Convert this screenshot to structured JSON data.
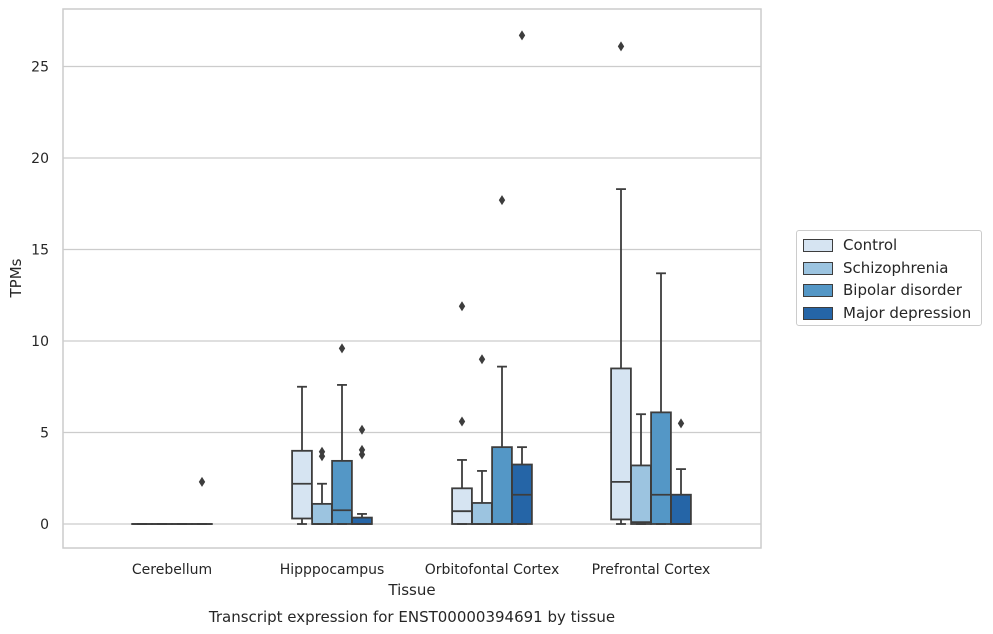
{
  "chart_data": {
    "type": "box",
    "title": "Transcript expression for ENST00000394691 by tissue",
    "xlabel": "Tissue",
    "ylabel": "TPMs",
    "ylim": [
      -1.2,
      28.0
    ],
    "yticks": [
      0,
      5,
      10,
      15,
      20,
      25
    ],
    "grid": true,
    "legend_position": "right",
    "categories": [
      "Cerebellum",
      "Hipppocampus",
      "Orbitofontal Cortex",
      "Prefrontal Cortex"
    ],
    "series": [
      {
        "name": "Control",
        "color": "#d6e4f2",
        "boxes": [
          {
            "q1": 0.0,
            "median": 0.0,
            "q3": 0.0,
            "whisker_low": 0.0,
            "whisker_high": 0.0,
            "outliers": []
          },
          {
            "q1": 0.3,
            "median": 2.2,
            "q3": 4.0,
            "whisker_low": 0.0,
            "whisker_high": 7.5,
            "outliers": []
          },
          {
            "q1": 0.0,
            "median": 0.7,
            "q3": 1.95,
            "whisker_low": 0.0,
            "whisker_high": 3.5,
            "outliers": [
              5.6,
              11.9
            ]
          },
          {
            "q1": 0.25,
            "median": 2.3,
            "q3": 8.5,
            "whisker_low": 0.0,
            "whisker_high": 18.3,
            "outliers": [
              26.1
            ]
          }
        ]
      },
      {
        "name": "Schizophrenia",
        "color": "#9cc4e0",
        "boxes": [
          {
            "q1": 0.0,
            "median": 0.0,
            "q3": 0.0,
            "whisker_low": 0.0,
            "whisker_high": 0.0,
            "outliers": []
          },
          {
            "q1": 0.0,
            "median": 0.0,
            "q3": 1.1,
            "whisker_low": 0.0,
            "whisker_high": 2.2,
            "outliers": [
              3.7,
              3.95
            ]
          },
          {
            "q1": 0.0,
            "median": 0.0,
            "q3": 1.15,
            "whisker_low": 0.0,
            "whisker_high": 2.9,
            "outliers": [
              9.0
            ]
          },
          {
            "q1": 0.0,
            "median": 0.1,
            "q3": 3.2,
            "whisker_low": 0.0,
            "whisker_high": 6.0,
            "outliers": []
          }
        ]
      },
      {
        "name": "Bipolar disorder",
        "color": "#5497c6",
        "boxes": [
          {
            "q1": 0.0,
            "median": 0.0,
            "q3": 0.0,
            "whisker_low": 0.0,
            "whisker_high": 0.0,
            "outliers": []
          },
          {
            "q1": 0.0,
            "median": 0.75,
            "q3": 3.45,
            "whisker_low": 0.0,
            "whisker_high": 7.6,
            "outliers": [
              9.6
            ]
          },
          {
            "q1": 0.0,
            "median": 0.0,
            "q3": 4.2,
            "whisker_low": 0.0,
            "whisker_high": 8.6,
            "outliers": [
              17.7
            ]
          },
          {
            "q1": 0.0,
            "median": 1.6,
            "q3": 6.1,
            "whisker_low": 0.0,
            "whisker_high": 13.7,
            "outliers": []
          }
        ]
      },
      {
        "name": "Major depression",
        "color": "#2565a7",
        "boxes": [
          {
            "q1": 0.0,
            "median": 0.0,
            "q3": 0.0,
            "whisker_low": 0.0,
            "whisker_high": 0.0,
            "outliers": [
              2.3
            ]
          },
          {
            "q1": 0.0,
            "median": 0.0,
            "q3": 0.35,
            "whisker_low": 0.0,
            "whisker_high": 0.55,
            "outliers": [
              3.8,
              4.05,
              5.15
            ]
          },
          {
            "q1": 0.0,
            "median": 1.6,
            "q3": 3.25,
            "whisker_low": 0.0,
            "whisker_high": 4.2,
            "outliers": [
              26.7
            ]
          },
          {
            "q1": 0.0,
            "median": 0.0,
            "q3": 1.6,
            "whisker_low": 0.0,
            "whisker_high": 3.0,
            "outliers": [
              5.5
            ]
          }
        ]
      }
    ]
  }
}
